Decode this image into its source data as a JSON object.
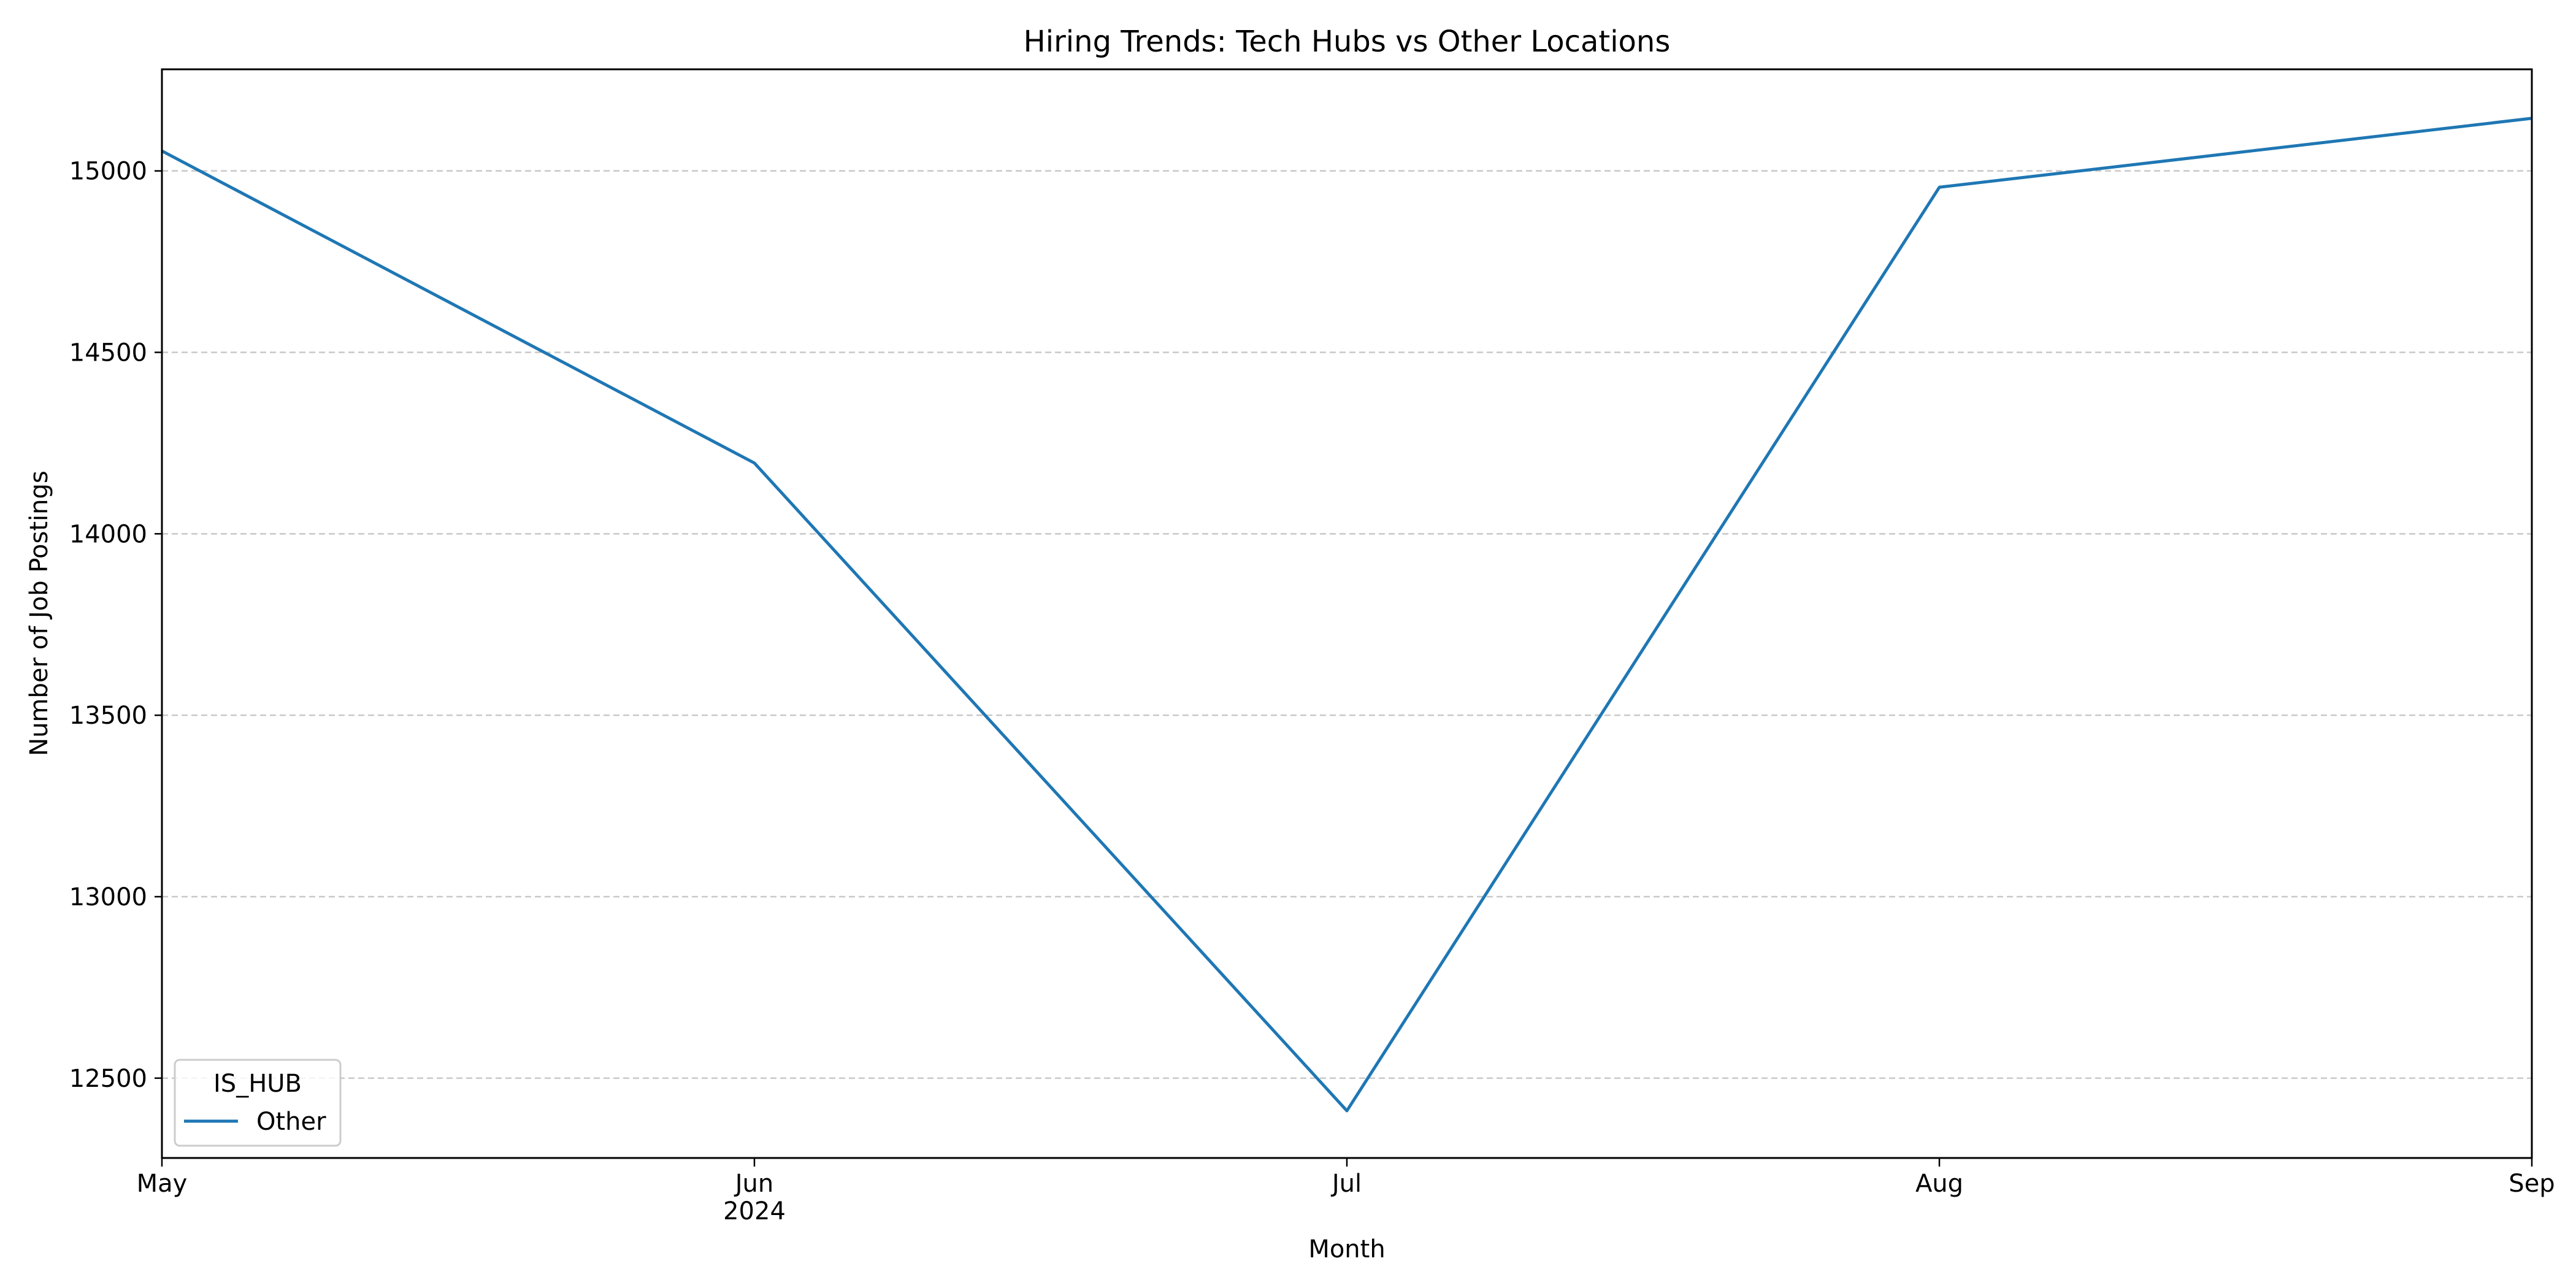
{
  "chart_data": {
    "type": "line",
    "title": "Hiring Trends: Tech Hubs vs Other Locations",
    "xlabel": "Month",
    "ylabel": "Number of Job Postings",
    "x": [
      "May",
      "Jun",
      "Jul",
      "Aug",
      "Sep"
    ],
    "x_secondary_label": "2024",
    "x_secondary_under": "Jun",
    "ylim": [
      12280,
      15280
    ],
    "yticks": [
      12500,
      13000,
      13500,
      14000,
      14500,
      15000
    ],
    "grid": {
      "axis": "y",
      "style": "dashed"
    },
    "legend": {
      "title": "IS_HUB",
      "placement": "lower-left"
    },
    "series": [
      {
        "name": "Other",
        "color": "#1f77b4",
        "values": [
          15055,
          14195,
          12410,
          14955,
          15145
        ]
      }
    ]
  }
}
